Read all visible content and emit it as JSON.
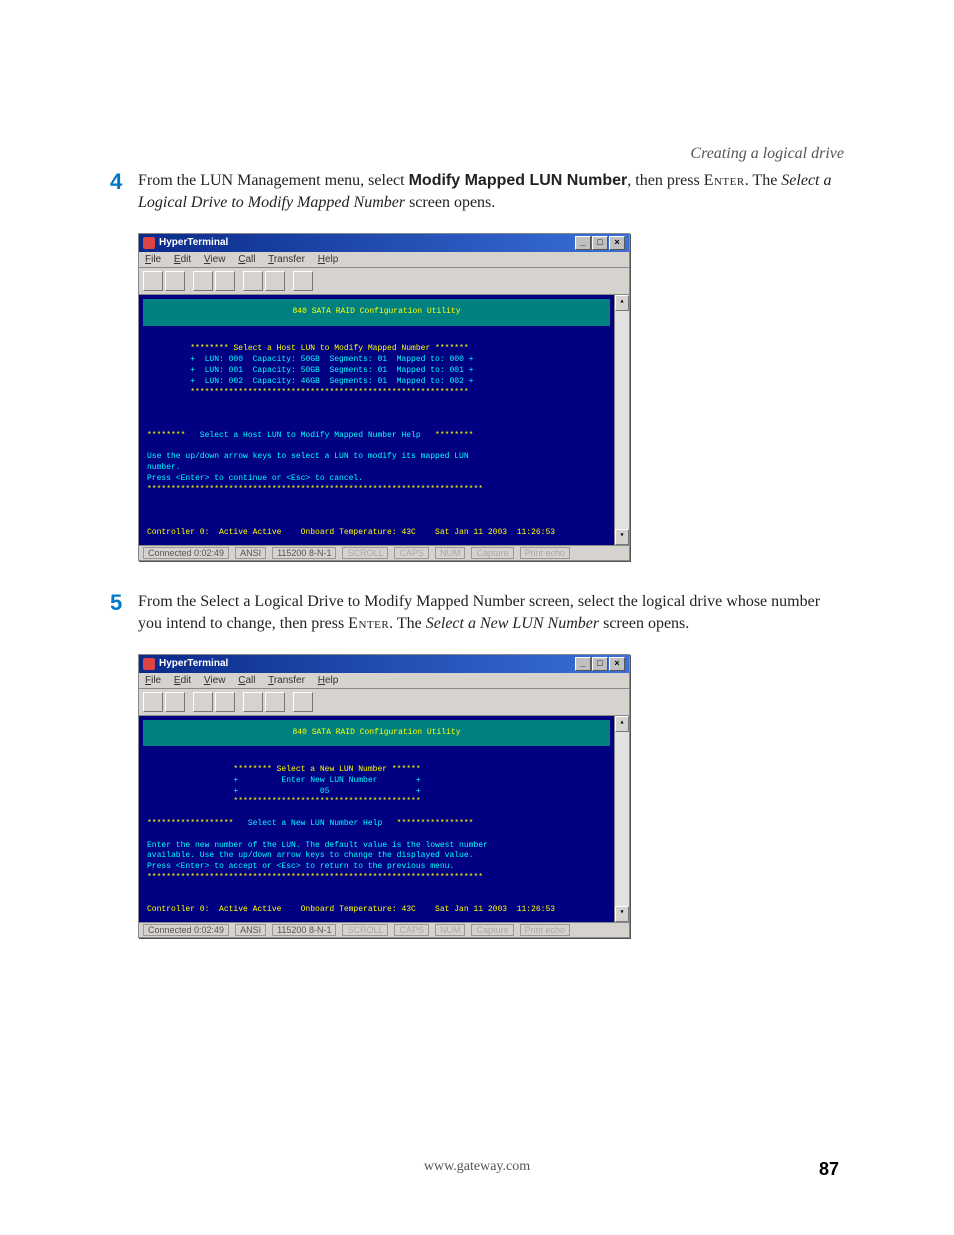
{
  "header": {
    "section_title": "Creating a logical drive"
  },
  "step4": {
    "num": "4",
    "pre": "From the LUN Management menu, select ",
    "bold": "Modify Mapped LUN Number",
    "mid": ", then press ",
    "enter": "Enter",
    "post1": ". The ",
    "italic": "Select a Logical Drive to Modify Mapped Number",
    "post2": " screen opens."
  },
  "step5": {
    "num": "5",
    "pre": "From the Select a Logical Drive to Modify Mapped Number screen, select the logical drive whose number you intend to change, then press ",
    "enter": "Enter",
    "post1": ". The ",
    "italic": "Select a New LUN Number",
    "post2": " screen opens."
  },
  "term": {
    "title": "HyperTerminal",
    "menu": {
      "file": "File",
      "edit": "Edit",
      "view": "View",
      "call": "Call",
      "transfer": "Transfer",
      "help": "Help"
    },
    "banner": "840 SATA RAID Configuration Utility",
    "status": {
      "connected": "Connected 0:02:49",
      "emul": "ANSI",
      "baud": "115200 8-N-1",
      "f1": "SCROLL",
      "f2": "CAPS",
      "f3": "NUM",
      "f4": "Capture",
      "f5": "Print echo"
    }
  },
  "term1": {
    "sel_header": "******** Select a Host LUN to Modify Mapped Number *******",
    "rows": [
      "+  LUN: 000  Capacity: 50GB  Segments: 01  Mapped to: 000 +",
      "+  LUN: 001  Capacity: 50GB  Segments: 01  Mapped to: 001 +",
      "+  LUN: 002  Capacity: 46GB  Segments: 01  Mapped to: 002 +"
    ],
    "sep": "**********************************************************",
    "help_l": "********",
    "help_t": "   Select a Host LUN to Modify Mapped Number Help   ",
    "help_r": "********",
    "help1": "Use the up/down arrow keys to select a LUN to modify its mapped LUN",
    "help2": "number.",
    "help3": "Press <Enter> to continue or <Esc> to cancel.",
    "help_sep": "**********************************************************************",
    "ctrl": "Controller 0:  Active Active    Onboard Temperature: 43C    Sat Jan 11 2003  11:26:53"
  },
  "term2": {
    "sel_header": "******** Select a New LUN Number ******",
    "row1": "+         Enter New LUN Number        +",
    "row2": "+                 05                  +",
    "sep": "***************************************",
    "help_l": "******************",
    "help_t": "   Select a New LUN Number Help   ",
    "help_r": "****************",
    "help1": "Enter the new number of the LUN. The default value is the lowest number",
    "help2": "available. Use the up/down arrow keys to change the displayed value.",
    "help3": "Press <Enter> to accept or <Esc> to return to the previous menu.",
    "help_sep": "**********************************************************************",
    "ctrl": "Controller 0:  Active Active    Onboard Temperature: 43C    Sat Jan 11 2003  11:26:53"
  },
  "footer": {
    "url": "www.gateway.com",
    "page": "87"
  }
}
